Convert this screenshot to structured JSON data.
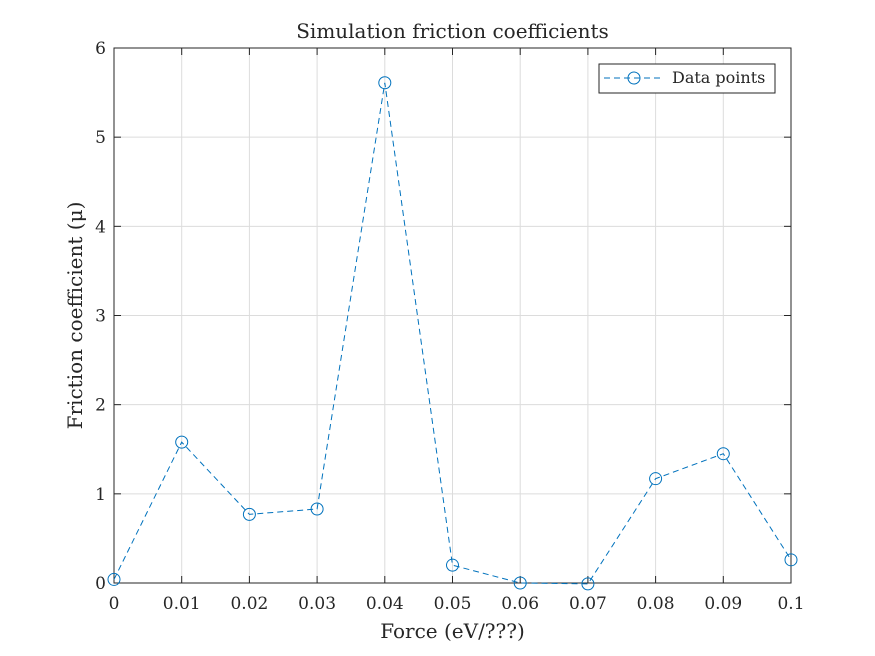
{
  "chart_data": {
    "type": "line",
    "title": "Simulation friction coefficients",
    "xlabel": "Force (eV/???)",
    "ylabel": "Friction coefficient (μ)",
    "xlim": [
      0,
      0.1
    ],
    "ylim": [
      0,
      6
    ],
    "x_ticks": [
      0,
      0.01,
      0.02,
      0.03,
      0.04,
      0.05,
      0.06,
      0.07,
      0.08,
      0.09,
      0.1
    ],
    "x_tick_labels": [
      "0",
      "0.01",
      "0.02",
      "0.03",
      "0.04",
      "0.05",
      "0.06",
      "0.07",
      "0.08",
      "0.09",
      "0.1"
    ],
    "y_ticks": [
      0,
      1,
      2,
      3,
      4,
      5,
      6
    ],
    "y_tick_labels": [
      "0",
      "1",
      "2",
      "3",
      "4",
      "5",
      "6"
    ],
    "grid": true,
    "legend_position": "top-right",
    "series": [
      {
        "name": "Data points",
        "line_style": "dashed",
        "marker": "circle",
        "color": "#0072BD",
        "x": [
          0,
          0.01,
          0.02,
          0.03,
          0.04,
          0.05,
          0.06,
          0.07,
          0.08,
          0.09,
          0.1
        ],
        "y": [
          0.04,
          1.58,
          0.77,
          0.83,
          5.61,
          0.2,
          0.0,
          -0.01,
          1.17,
          1.45,
          0.26
        ]
      }
    ]
  }
}
